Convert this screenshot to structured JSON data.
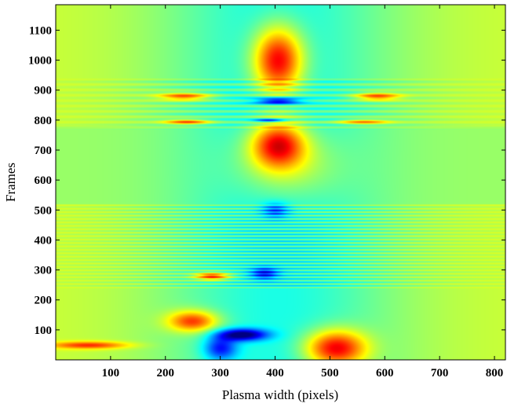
{
  "chart_data": {
    "type": "heatmap",
    "title": "",
    "xlabel": "Plasma width (pixels)",
    "ylabel": "Frames",
    "xlim": [
      0,
      820
    ],
    "ylim": [
      0,
      1185
    ],
    "x_ticks": [
      100,
      200,
      300,
      400,
      500,
      600,
      700,
      800
    ],
    "y_ticks": [
      100,
      200,
      300,
      400,
      500,
      600,
      700,
      800,
      900,
      1000,
      1100
    ],
    "colormap": "jet",
    "color_range": [
      -1,
      1
    ],
    "grid": false,
    "colorbar": false,
    "features": [
      {
        "kind": "peak",
        "x": 405,
        "y": 1000,
        "sx": 45,
        "sy": 110,
        "value": 0.95
      },
      {
        "kind": "peak",
        "x": 405,
        "y": 720,
        "sx": 48,
        "sy": 75,
        "value": 0.85
      },
      {
        "kind": "peak",
        "x": 420,
        "y": 650,
        "sx": 95,
        "sy": 120,
        "value": 0.35
      },
      {
        "kind": "peak",
        "x": 510,
        "y": 40,
        "sx": 55,
        "sy": 60,
        "value": 0.9
      },
      {
        "kind": "peak",
        "x": 250,
        "y": 130,
        "sx": 45,
        "sy": 35,
        "value": 0.7
      },
      {
        "kind": "peak",
        "x": 285,
        "y": 280,
        "sx": 30,
        "sy": 12,
        "value": 0.75
      },
      {
        "kind": "peak",
        "x": 235,
        "y": 880,
        "sx": 45,
        "sy": 12,
        "value": 0.6
      },
      {
        "kind": "peak",
        "x": 585,
        "y": 880,
        "sx": 40,
        "sy": 12,
        "value": 0.6
      },
      {
        "kind": "peak",
        "x": 240,
        "y": 795,
        "sx": 40,
        "sy": 8,
        "value": 0.6
      },
      {
        "kind": "peak",
        "x": 560,
        "y": 795,
        "sx": 45,
        "sy": 8,
        "value": 0.5
      },
      {
        "kind": "peak",
        "x": 60,
        "y": 50,
        "sx": 70,
        "sy": 12,
        "value": 0.55
      },
      {
        "kind": "trough",
        "x": 405,
        "y": 865,
        "sx": 40,
        "sy": 12,
        "value": -0.85
      },
      {
        "kind": "trough",
        "x": 390,
        "y": 800,
        "sx": 30,
        "sy": 6,
        "value": -0.75
      },
      {
        "kind": "trough",
        "x": 340,
        "y": 85,
        "sx": 45,
        "sy": 20,
        "value": -0.9
      },
      {
        "kind": "trough",
        "x": 300,
        "y": 40,
        "sx": 30,
        "sy": 40,
        "value": -0.6
      },
      {
        "kind": "trough",
        "x": 380,
        "y": 290,
        "sx": 25,
        "sy": 20,
        "value": -0.55
      },
      {
        "kind": "trough",
        "x": 400,
        "y": 500,
        "sx": 25,
        "sy": 25,
        "value": -0.45
      }
    ]
  }
}
